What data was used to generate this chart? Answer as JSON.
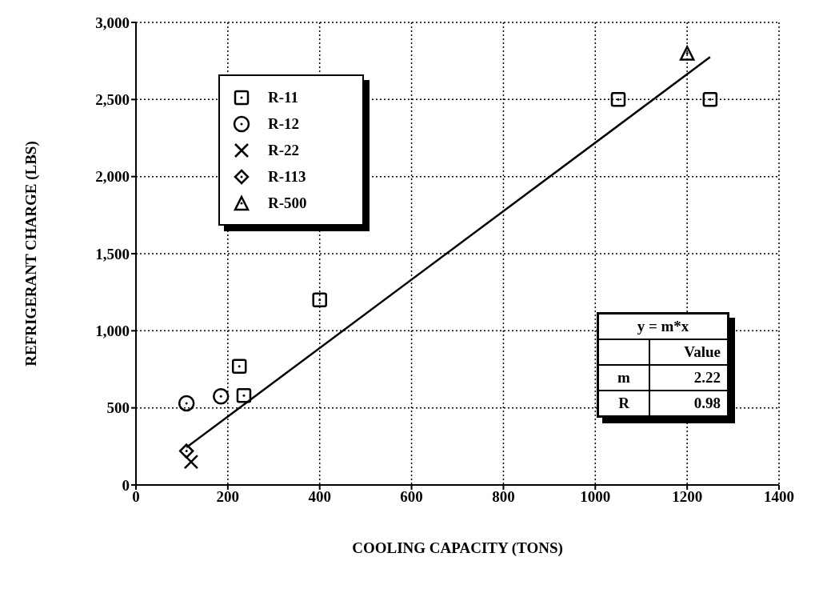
{
  "chart_data": {
    "type": "scatter",
    "xlabel": "COOLING CAPACITY (TONS)",
    "ylabel": "REFRIGERANT CHARGE (LBS)",
    "xlim": [
      0,
      1400
    ],
    "xticks": [
      0,
      200,
      400,
      600,
      800,
      1000,
      1200,
      1400
    ],
    "ylim": [
      0,
      3000
    ],
    "yticks": [
      0,
      500,
      {
        "value": 1000,
        "label": "1,000"
      },
      {
        "value": 1500,
        "label": "1,500"
      },
      {
        "value": 2000,
        "label": "2,000"
      },
      {
        "value": 2500,
        "label": "2,500"
      },
      {
        "value": 3000,
        "label": "3,000"
      }
    ],
    "grid": true,
    "legend": "top left",
    "series": [
      {
        "name": "R-11",
        "color": "#000000",
        "marker": "square",
        "x": [
          225,
          235,
          400,
          1050,
          1250
        ],
        "values": [
          770,
          580,
          1200,
          2500,
          2500
        ]
      },
      {
        "name": "R-12",
        "color": "#000000",
        "marker": "circle",
        "x": [
          110,
          185
        ],
        "values": [
          530,
          575
        ]
      },
      {
        "name": "R-22",
        "color": "#000000",
        "marker": "cross",
        "x": [
          120
        ],
        "values": [
          150
        ]
      },
      {
        "name": "R-113",
        "color": "#000000",
        "marker": "diamond",
        "x": [
          110
        ],
        "values": [
          220
        ]
      },
      {
        "name": "R-500",
        "color": "#000000",
        "marker": "triangle",
        "x": [
          1200
        ],
        "values": [
          2800
        ]
      },
      {
        "type": "line",
        "color": "#000000",
        "marker": "none",
        "x": [
          110,
          1250
        ],
        "values": [
          244,
          2775
        ]
      }
    ],
    "annotations": [
      "y = m*x",
      "Value",
      "m",
      "2.22",
      "R",
      "0.98"
    ]
  }
}
